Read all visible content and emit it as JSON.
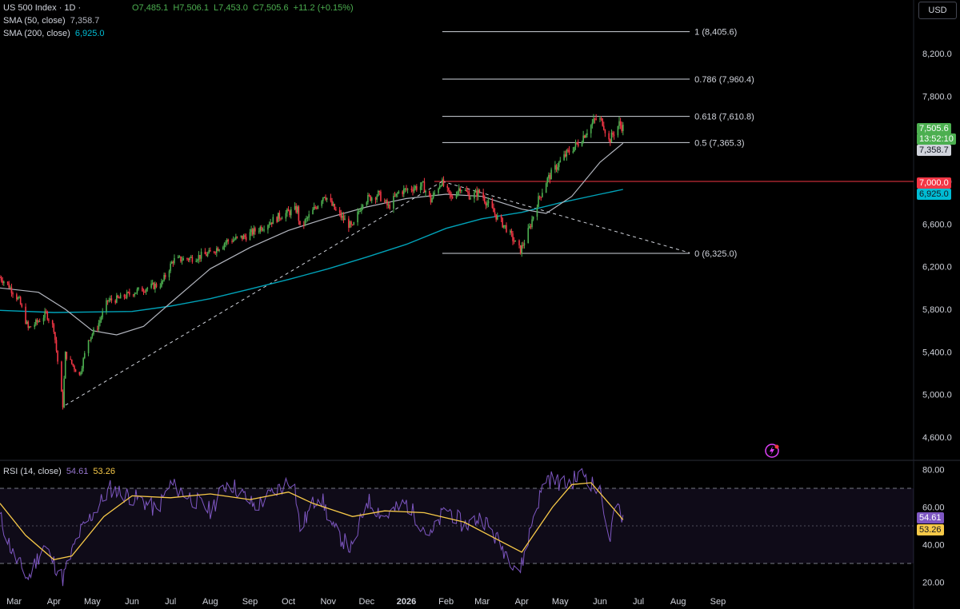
{
  "header": {
    "symbol": "US 500 Index · 1D ·",
    "open": "O7,485.1",
    "high": "H7,506.1",
    "low": "L7,453.0",
    "close": "C7,505.6",
    "change": "+11.2 (+0.15%)",
    "sma50_label": "SMA (50, close)",
    "sma50_value": "7,358.7",
    "sma200_label": "SMA (200, close)",
    "sma200_value": "6,925.0",
    "currency": "USD"
  },
  "rsi_header": {
    "label": "RSI (14, close)",
    "rsi_value": "54.61",
    "ma_value": "53.26"
  },
  "price_labels": {
    "last": "7,505.6",
    "countdown": "13:52:10",
    "sma50": "7,358.7",
    "hline": "7,000.0",
    "sma200": "6,925.0",
    "rsi": "54.61",
    "rsi_ma": "53.26"
  },
  "colors": {
    "up": "#4caf50",
    "down": "#f23645",
    "sma50": "#b2b5be",
    "sma200": "#00a2b8",
    "rsi": "#7e57c2",
    "rsi_ma": "#f7c948",
    "hline": "#f23645",
    "fib": "#d1d4dc"
  },
  "chart_data": [
    {
      "type": "candlestick",
      "ylim": [
        4350,
        8550
      ],
      "y_ticks": [
        4600,
        5000,
        5400,
        5800,
        6200,
        6600,
        7000,
        7400,
        7800,
        8200
      ],
      "y_tick_labels": [
        "4,600.0",
        "5,000.0",
        "5,400.0",
        "5,800.0",
        "6,200.0",
        "6,600.0",
        "7,000.0",
        "7,400.0",
        "7,800.0",
        "8,200.0"
      ],
      "x_labels": [
        "Mar",
        "Apr",
        "May",
        "Jun",
        "Jul",
        "Aug",
        "Sep",
        "Oct",
        "Nov",
        "Dec",
        "2026",
        "Feb",
        "Mar",
        "Apr",
        "May",
        "Jun",
        "Jul",
        "Aug",
        "Sep"
      ],
      "price_path": [
        [
          "2025-02-18",
          6100
        ],
        [
          "2025-02-25",
          6020
        ],
        [
          "2025-03-05",
          5880
        ],
        [
          "2025-03-12",
          5620
        ],
        [
          "2025-03-19",
          5680
        ],
        [
          "2025-03-26",
          5760
        ],
        [
          "2025-04-01",
          5620
        ],
        [
          "2025-04-08",
          4900
        ],
        [
          "2025-04-10",
          5380
        ],
        [
          "2025-04-21",
          5180
        ],
        [
          "2025-04-28",
          5520
        ],
        [
          "2025-05-05",
          5640
        ],
        [
          "2025-05-13",
          5880
        ],
        [
          "2025-05-22",
          5900
        ],
        [
          "2025-06-02",
          5960
        ],
        [
          "2025-06-12",
          6000
        ],
        [
          "2025-06-24",
          6040
        ],
        [
          "2025-07-03",
          6260
        ],
        [
          "2025-07-17",
          6280
        ],
        [
          "2025-07-31",
          6320
        ],
        [
          "2025-08-14",
          6440
        ],
        [
          "2025-08-28",
          6480
        ],
        [
          "2025-09-11",
          6580
        ],
        [
          "2025-09-25",
          6680
        ],
        [
          "2025-10-08",
          6740
        ],
        [
          "2025-10-10",
          6560
        ],
        [
          "2025-10-20",
          6720
        ],
        [
          "2025-10-29",
          6880
        ],
        [
          "2025-11-07",
          6720
        ],
        [
          "2025-11-20",
          6560
        ],
        [
          "2025-11-28",
          6820
        ],
        [
          "2025-12-10",
          6880
        ],
        [
          "2025-12-18",
          6760
        ],
        [
          "2025-12-26",
          6900
        ],
        [
          "2026-01-06",
          6940
        ],
        [
          "2026-01-14",
          6960
        ],
        [
          "2026-01-20",
          6820
        ],
        [
          "2026-01-28",
          7000
        ],
        [
          "2026-02-05",
          6840
        ],
        [
          "2026-02-12",
          6950
        ],
        [
          "2026-02-20",
          6860
        ],
        [
          "2026-02-27",
          6900
        ],
        [
          "2026-03-06",
          6780
        ],
        [
          "2026-03-13",
          6660
        ],
        [
          "2026-03-20",
          6560
        ],
        [
          "2026-03-27",
          6420
        ],
        [
          "2026-03-31",
          6350
        ],
        [
          "2026-04-07",
          6560
        ],
        [
          "2026-04-13",
          6800
        ],
        [
          "2026-04-20",
          7000
        ],
        [
          "2026-04-28",
          7140
        ],
        [
          "2026-05-06",
          7260
        ],
        [
          "2026-05-15",
          7360
        ],
        [
          "2026-05-22",
          7480
        ],
        [
          "2026-05-29",
          7590
        ],
        [
          "2026-06-03",
          7560
        ],
        [
          "2026-06-08",
          7380
        ],
        [
          "2026-06-12",
          7460
        ],
        [
          "2026-06-16",
          7540
        ],
        [
          "2026-06-19",
          7505.6
        ]
      ],
      "sma50_path": [
        [
          "2025-02-18",
          6000
        ],
        [
          "2025-03-20",
          5960
        ],
        [
          "2025-04-10",
          5800
        ],
        [
          "2025-05-01",
          5600
        ],
        [
          "2025-05-20",
          5560
        ],
        [
          "2025-06-10",
          5640
        ],
        [
          "2025-07-01",
          5860
        ],
        [
          "2025-08-01",
          6180
        ],
        [
          "2025-09-01",
          6380
        ],
        [
          "2025-10-01",
          6540
        ],
        [
          "2025-11-01",
          6660
        ],
        [
          "2025-12-01",
          6760
        ],
        [
          "2026-01-01",
          6840
        ],
        [
          "2026-02-01",
          6880
        ],
        [
          "2026-03-01",
          6860
        ],
        [
          "2026-04-01",
          6740
        ],
        [
          "2026-04-20",
          6700
        ],
        [
          "2026-05-10",
          6860
        ],
        [
          "2026-06-01",
          7180
        ],
        [
          "2026-06-19",
          7358.7
        ]
      ],
      "sma200_path": [
        [
          "2025-02-18",
          5790
        ],
        [
          "2025-04-01",
          5770
        ],
        [
          "2025-06-01",
          5780
        ],
        [
          "2025-07-01",
          5830
        ],
        [
          "2025-08-01",
          5900
        ],
        [
          "2025-09-01",
          5990
        ],
        [
          "2025-10-01",
          6080
        ],
        [
          "2025-11-01",
          6180
        ],
        [
          "2025-12-01",
          6290
        ],
        [
          "2026-01-01",
          6410
        ],
        [
          "2026-02-01",
          6560
        ],
        [
          "2026-03-01",
          6650
        ],
        [
          "2026-04-01",
          6710
        ],
        [
          "2026-05-01",
          6800
        ],
        [
          "2026-06-01",
          6880
        ],
        [
          "2026-06-19",
          6925.0
        ]
      ],
      "hline": 7000,
      "trendline_up": [
        [
          "2025-04-10",
          4900
        ],
        [
          "2026-01-29",
          7000
        ]
      ],
      "trendline_down": [
        [
          "2026-01-29",
          7000
        ],
        [
          "2026-08-10",
          6330
        ]
      ],
      "fib_range": [
        [
          "2026-01-29",
          "2026-08-10"
        ]
      ],
      "fib_levels": [
        {
          "ratio": "1",
          "value": 8405.6,
          "label": "1 (8,405.6)"
        },
        {
          "ratio": "0.786",
          "value": 7960.4,
          "label": "0.786 (7,960.4)"
        },
        {
          "ratio": "0.618",
          "value": 7610.8,
          "label": "0.618 (7,610.8)"
        },
        {
          "ratio": "0.5",
          "value": 7365.3,
          "label": "0.5 (7,365.3)"
        },
        {
          "ratio": "0",
          "value": 6325.0,
          "label": "0 (6,325.0)"
        }
      ]
    },
    {
      "type": "line",
      "name": "RSI",
      "ylim": [
        15,
        85
      ],
      "y_ticks": [
        20,
        40,
        60,
        80
      ],
      "y_tick_labels": [
        "20.00",
        "40.00",
        "60.00",
        "80.00"
      ],
      "band": [
        30,
        70
      ],
      "mid": 50,
      "rsi_path": [
        [
          "2025-02-18",
          55
        ],
        [
          "2025-02-28",
          35
        ],
        [
          "2025-03-12",
          22
        ],
        [
          "2025-03-24",
          40
        ],
        [
          "2025-04-03",
          28
        ],
        [
          "2025-04-08",
          22
        ],
        [
          "2025-04-20",
          45
        ],
        [
          "2025-05-05",
          60
        ],
        [
          "2025-05-15",
          70
        ],
        [
          "2025-06-10",
          63
        ],
        [
          "2025-06-20",
          58
        ],
        [
          "2025-07-01",
          72
        ],
        [
          "2025-07-15",
          66
        ],
        [
          "2025-08-01",
          58
        ],
        [
          "2025-08-15",
          74
        ],
        [
          "2025-09-05",
          60
        ],
        [
          "2025-09-20",
          68
        ],
        [
          "2025-10-05",
          76
        ],
        [
          "2025-10-10",
          48
        ],
        [
          "2025-10-25",
          68
        ],
        [
          "2025-11-05",
          48
        ],
        [
          "2025-11-20",
          37
        ],
        [
          "2025-12-01",
          64
        ],
        [
          "2025-12-15",
          55
        ],
        [
          "2026-01-01",
          62
        ],
        [
          "2026-01-20",
          44
        ],
        [
          "2026-02-01",
          60
        ],
        [
          "2026-02-15",
          50
        ],
        [
          "2026-03-01",
          55
        ],
        [
          "2026-03-15",
          40
        ],
        [
          "2026-03-31",
          26
        ],
        [
          "2026-04-10",
          55
        ],
        [
          "2026-04-20",
          76
        ],
        [
          "2026-05-05",
          72
        ],
        [
          "2026-05-20",
          78
        ],
        [
          "2026-06-03",
          65
        ],
        [
          "2026-06-08",
          40
        ],
        [
          "2026-06-14",
          62
        ],
        [
          "2026-06-19",
          54.61
        ]
      ],
      "rsi_ma_path": [
        [
          "2025-02-18",
          62
        ],
        [
          "2025-03-10",
          45
        ],
        [
          "2025-04-01",
          32
        ],
        [
          "2025-04-15",
          34
        ],
        [
          "2025-05-10",
          55
        ],
        [
          "2025-06-01",
          66
        ],
        [
          "2025-07-01",
          65
        ],
        [
          "2025-08-01",
          67
        ],
        [
          "2025-09-01",
          64
        ],
        [
          "2025-10-01",
          68
        ],
        [
          "2025-10-20",
          62
        ],
        [
          "2025-11-20",
          55
        ],
        [
          "2025-12-15",
          58
        ],
        [
          "2026-01-15",
          57
        ],
        [
          "2026-02-15",
          52
        ],
        [
          "2026-03-15",
          42
        ],
        [
          "2026-04-01",
          36
        ],
        [
          "2026-04-25",
          60
        ],
        [
          "2026-05-10",
          72
        ],
        [
          "2026-05-25",
          73
        ],
        [
          "2026-06-08",
          62
        ],
        [
          "2026-06-19",
          53.26
        ]
      ]
    }
  ]
}
